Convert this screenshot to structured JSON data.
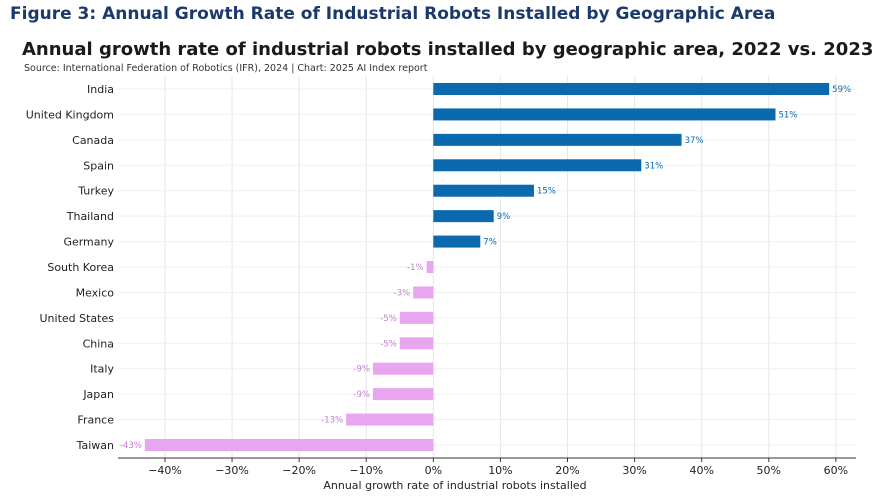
{
  "figure": {
    "title": "Figure 3: Annual Growth Rate of Industrial Robots Installed by Geographic Area"
  },
  "colors": {
    "positive": "#0a6aad",
    "negative": "#e8a6f0",
    "positive_label": "#0a6aad",
    "negative_label": "#c77fd6",
    "grid": "#e6e6e6"
  },
  "chart_data": {
    "type": "bar",
    "orientation": "horizontal",
    "title": "Annual growth rate of industrial robots installed by geographic area, 2022 vs. 2023",
    "subtitle": "Source: International Federation of Robotics (IFR), 2024 | Chart: 2025 AI Index report",
    "xlabel": "Annual growth rate of industrial robots installed",
    "ylabel": "",
    "xlim": [
      -47,
      63
    ],
    "xticks": [
      -40,
      -30,
      -20,
      -10,
      0,
      10,
      20,
      30,
      40,
      50,
      60
    ],
    "xtick_labels": [
      "−40%",
      "−30%",
      "−20%",
      "−10%",
      "0%",
      "10%",
      "20%",
      "30%",
      "40%",
      "50%",
      "60%"
    ],
    "grid": true,
    "categories": [
      "India",
      "United Kingdom",
      "Canada",
      "Spain",
      "Turkey",
      "Thailand",
      "Germany",
      "South Korea",
      "Mexico",
      "United States",
      "China",
      "Italy",
      "Japan",
      "France",
      "Taiwan"
    ],
    "values": [
      59,
      51,
      37,
      31,
      15,
      9,
      7,
      -1,
      -3,
      -5,
      -5,
      -9,
      -9,
      -13,
      -43
    ],
    "value_labels": [
      "59%",
      "51%",
      "37%",
      "31%",
      "15%",
      "9%",
      "7%",
      "-1%",
      "-3%",
      "-5%",
      "-5%",
      "-9%",
      "-9%",
      "-13%",
      "-43%"
    ]
  }
}
